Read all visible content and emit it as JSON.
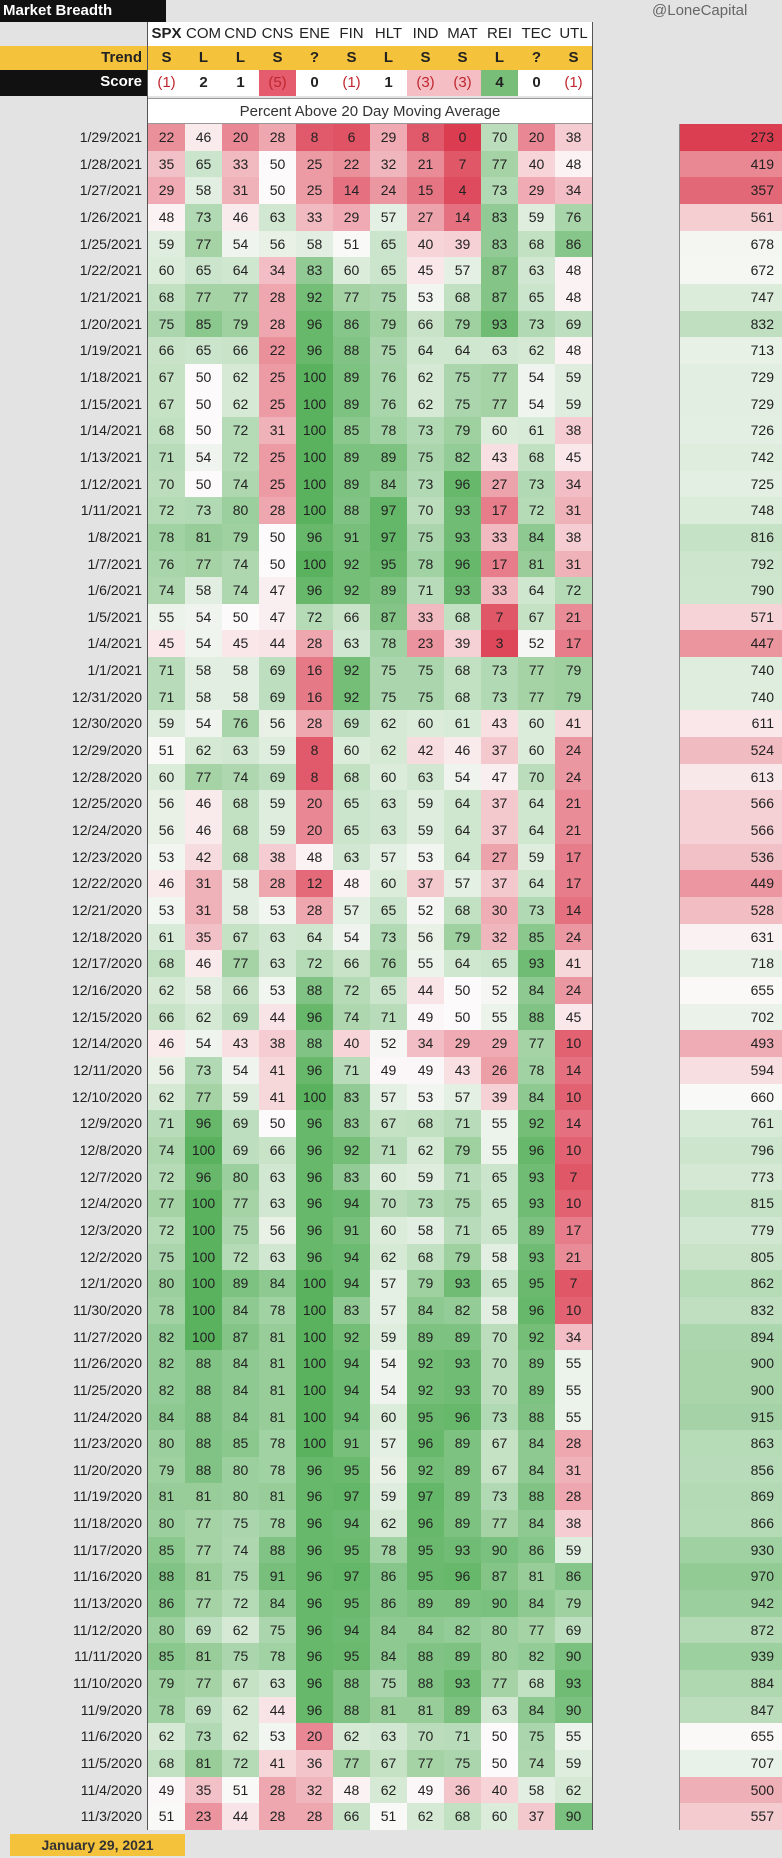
{
  "title": "Market Breadth",
  "handle": "@LoneCapital",
  "subtitle": "Percent Above 20 Day Moving Average",
  "trend_label": "Trend",
  "score_label": "Score",
  "footer_date": "January 29, 2021",
  "chart_data": {
    "type": "table",
    "title": "Market Breadth",
    "subtitle": "Percent Above 20 Day Moving Average",
    "columns": [
      "SPX",
      "COM",
      "CND",
      "CNS",
      "ENE",
      "FIN",
      "HLT",
      "IND",
      "MAT",
      "REI",
      "TEC",
      "UTL"
    ],
    "trend": [
      "S",
      "L",
      "L",
      "S",
      "?",
      "S",
      "L",
      "S",
      "S",
      "L",
      "?",
      "S"
    ],
    "score": [
      "(1)",
      "2",
      "1",
      "(5)",
      "0",
      "(1)",
      "1",
      "(3)",
      "(3)",
      "4",
      "0",
      "(1)"
    ],
    "score_values": [
      -1,
      2,
      1,
      -5,
      0,
      -1,
      1,
      -3,
      -3,
      4,
      0,
      -1
    ],
    "rows": [
      {
        "date": "1/29/2021",
        "v": [
          22,
          46,
          20,
          28,
          8,
          6,
          29,
          8,
          0,
          70,
          20,
          38
        ],
        "total": 273
      },
      {
        "date": "1/28/2021",
        "v": [
          35,
          65,
          33,
          50,
          25,
          22,
          32,
          21,
          7,
          77,
          40,
          48
        ],
        "total": 419
      },
      {
        "date": "1/27/2021",
        "v": [
          29,
          58,
          31,
          50,
          25,
          14,
          24,
          15,
          4,
          73,
          29,
          34
        ],
        "total": 357
      },
      {
        "date": "1/26/2021",
        "v": [
          48,
          73,
          46,
          63,
          33,
          29,
          57,
          27,
          14,
          83,
          59,
          76
        ],
        "total": 561
      },
      {
        "date": "1/25/2021",
        "v": [
          59,
          77,
          54,
          56,
          58,
          51,
          65,
          40,
          39,
          83,
          68,
          86
        ],
        "total": 678
      },
      {
        "date": "1/22/2021",
        "v": [
          60,
          65,
          64,
          34,
          83,
          60,
          65,
          45,
          57,
          87,
          63,
          48
        ],
        "total": 672
      },
      {
        "date": "1/21/2021",
        "v": [
          68,
          77,
          77,
          28,
          92,
          77,
          75,
          53,
          68,
          87,
          65,
          48
        ],
        "total": 747
      },
      {
        "date": "1/20/2021",
        "v": [
          75,
          85,
          79,
          28,
          96,
          86,
          79,
          66,
          79,
          93,
          73,
          69
        ],
        "total": 832
      },
      {
        "date": "1/19/2021",
        "v": [
          66,
          65,
          66,
          22,
          96,
          88,
          75,
          64,
          64,
          63,
          62,
          48
        ],
        "total": 713
      },
      {
        "date": "1/18/2021",
        "v": [
          67,
          50,
          62,
          25,
          100,
          89,
          76,
          62,
          75,
          77,
          54,
          59
        ],
        "total": 729
      },
      {
        "date": "1/15/2021",
        "v": [
          67,
          50,
          62,
          25,
          100,
          89,
          76,
          62,
          75,
          77,
          54,
          59
        ],
        "total": 729
      },
      {
        "date": "1/14/2021",
        "v": [
          68,
          50,
          72,
          31,
          100,
          85,
          78,
          73,
          79,
          60,
          61,
          38
        ],
        "total": 726
      },
      {
        "date": "1/13/2021",
        "v": [
          71,
          54,
          72,
          25,
          100,
          89,
          89,
          75,
          82,
          43,
          68,
          45
        ],
        "total": 742
      },
      {
        "date": "1/12/2021",
        "v": [
          70,
          50,
          74,
          25,
          100,
          89,
          84,
          73,
          96,
          27,
          73,
          34
        ],
        "total": 725
      },
      {
        "date": "1/11/2021",
        "v": [
          72,
          73,
          80,
          28,
          100,
          88,
          97,
          70,
          93,
          17,
          72,
          31
        ],
        "total": 748
      },
      {
        "date": "1/8/2021",
        "v": [
          78,
          81,
          79,
          50,
          96,
          91,
          97,
          75,
          93,
          33,
          84,
          38
        ],
        "total": 816
      },
      {
        "date": "1/7/2021",
        "v": [
          76,
          77,
          74,
          50,
          100,
          92,
          95,
          78,
          96,
          17,
          81,
          31
        ],
        "total": 792
      },
      {
        "date": "1/6/2021",
        "v": [
          74,
          58,
          74,
          47,
          96,
          92,
          89,
          71,
          93,
          33,
          64,
          72
        ],
        "total": 790
      },
      {
        "date": "1/5/2021",
        "v": [
          55,
          54,
          50,
          47,
          72,
          66,
          87,
          33,
          68,
          7,
          67,
          21
        ],
        "total": 571
      },
      {
        "date": "1/4/2021",
        "v": [
          45,
          54,
          45,
          44,
          28,
          63,
          78,
          23,
          39,
          3,
          52,
          17
        ],
        "total": 447
      },
      {
        "date": "1/1/2021",
        "v": [
          71,
          58,
          58,
          69,
          16,
          92,
          75,
          75,
          68,
          73,
          77,
          79
        ],
        "total": 740
      },
      {
        "date": "12/31/2020",
        "v": [
          71,
          58,
          58,
          69,
          16,
          92,
          75,
          75,
          68,
          73,
          77,
          79
        ],
        "total": 740
      },
      {
        "date": "12/30/2020",
        "v": [
          59,
          54,
          76,
          56,
          28,
          69,
          62,
          60,
          61,
          43,
          60,
          41
        ],
        "total": 611
      },
      {
        "date": "12/29/2020",
        "v": [
          51,
          62,
          63,
          59,
          8,
          60,
          62,
          42,
          46,
          37,
          60,
          24
        ],
        "total": 524
      },
      {
        "date": "12/28/2020",
        "v": [
          60,
          77,
          74,
          69,
          8,
          68,
          60,
          63,
          54,
          47,
          70,
          24
        ],
        "total": 613
      },
      {
        "date": "12/25/2020",
        "v": [
          56,
          46,
          68,
          59,
          20,
          65,
          63,
          59,
          64,
          37,
          64,
          21
        ],
        "total": 566
      },
      {
        "date": "12/24/2020",
        "v": [
          56,
          46,
          68,
          59,
          20,
          65,
          63,
          59,
          64,
          37,
          64,
          21
        ],
        "total": 566
      },
      {
        "date": "12/23/2020",
        "v": [
          53,
          42,
          68,
          38,
          48,
          63,
          57,
          53,
          64,
          27,
          59,
          17
        ],
        "total": 536
      },
      {
        "date": "12/22/2020",
        "v": [
          46,
          31,
          58,
          28,
          12,
          48,
          60,
          37,
          57,
          37,
          64,
          17
        ],
        "total": 449
      },
      {
        "date": "12/21/2020",
        "v": [
          53,
          31,
          58,
          53,
          28,
          57,
          65,
          52,
          68,
          30,
          73,
          14
        ],
        "total": 528
      },
      {
        "date": "12/18/2020",
        "v": [
          61,
          35,
          67,
          63,
          64,
          54,
          73,
          56,
          79,
          32,
          85,
          24
        ],
        "total": 631
      },
      {
        "date": "12/17/2020",
        "v": [
          68,
          46,
          77,
          63,
          72,
          66,
          76,
          55,
          64,
          65,
          93,
          41
        ],
        "total": 718
      },
      {
        "date": "12/16/2020",
        "v": [
          62,
          58,
          66,
          53,
          88,
          72,
          65,
          44,
          50,
          52,
          84,
          24
        ],
        "total": 655
      },
      {
        "date": "12/15/2020",
        "v": [
          66,
          62,
          69,
          44,
          96,
          74,
          71,
          49,
          50,
          55,
          88,
          45
        ],
        "total": 702
      },
      {
        "date": "12/14/2020",
        "v": [
          46,
          54,
          43,
          38,
          88,
          40,
          52,
          34,
          29,
          29,
          77,
          10
        ],
        "total": 493
      },
      {
        "date": "12/11/2020",
        "v": [
          56,
          73,
          54,
          41,
          96,
          71,
          49,
          49,
          43,
          26,
          78,
          14
        ],
        "total": 594
      },
      {
        "date": "12/10/2020",
        "v": [
          62,
          77,
          59,
          41,
          100,
          83,
          57,
          53,
          57,
          39,
          84,
          10
        ],
        "total": 660
      },
      {
        "date": "12/9/2020",
        "v": [
          71,
          96,
          69,
          50,
          96,
          83,
          67,
          68,
          71,
          55,
          92,
          14
        ],
        "total": 761
      },
      {
        "date": "12/8/2020",
        "v": [
          74,
          100,
          69,
          66,
          96,
          92,
          71,
          62,
          79,
          55,
          96,
          10
        ],
        "total": 796
      },
      {
        "date": "12/7/2020",
        "v": [
          72,
          96,
          80,
          63,
          96,
          83,
          60,
          59,
          71,
          65,
          93,
          7
        ],
        "total": 773
      },
      {
        "date": "12/4/2020",
        "v": [
          77,
          100,
          77,
          63,
          96,
          94,
          70,
          73,
          75,
          65,
          93,
          10
        ],
        "total": 815
      },
      {
        "date": "12/3/2020",
        "v": [
          72,
          100,
          75,
          56,
          96,
          91,
          60,
          58,
          71,
          65,
          89,
          17
        ],
        "total": 779
      },
      {
        "date": "12/2/2020",
        "v": [
          75,
          100,
          72,
          63,
          96,
          94,
          62,
          68,
          79,
          58,
          93,
          21
        ],
        "total": 805
      },
      {
        "date": "12/1/2020",
        "v": [
          80,
          100,
          89,
          84,
          100,
          94,
          57,
          79,
          93,
          65,
          95,
          7
        ],
        "total": 862
      },
      {
        "date": "11/30/2020",
        "v": [
          78,
          100,
          84,
          78,
          100,
          83,
          57,
          84,
          82,
          58,
          96,
          10
        ],
        "total": 832
      },
      {
        "date": "11/27/2020",
        "v": [
          82,
          100,
          87,
          81,
          100,
          92,
          59,
          89,
          89,
          70,
          92,
          34
        ],
        "total": 894
      },
      {
        "date": "11/26/2020",
        "v": [
          82,
          88,
          84,
          81,
          100,
          94,
          54,
          92,
          93,
          70,
          89,
          55
        ],
        "total": 900
      },
      {
        "date": "11/25/2020",
        "v": [
          82,
          88,
          84,
          81,
          100,
          94,
          54,
          92,
          93,
          70,
          89,
          55
        ],
        "total": 900
      },
      {
        "date": "11/24/2020",
        "v": [
          84,
          88,
          84,
          81,
          100,
          94,
          60,
          95,
          96,
          73,
          88,
          55
        ],
        "total": 915
      },
      {
        "date": "11/23/2020",
        "v": [
          80,
          88,
          85,
          78,
          100,
          91,
          57,
          96,
          89,
          67,
          84,
          28
        ],
        "total": 863
      },
      {
        "date": "11/20/2020",
        "v": [
          79,
          88,
          80,
          78,
          96,
          95,
          56,
          92,
          89,
          67,
          84,
          31
        ],
        "total": 856
      },
      {
        "date": "11/19/2020",
        "v": [
          81,
          81,
          80,
          81,
          96,
          97,
          59,
          97,
          89,
          73,
          88,
          28
        ],
        "total": 869
      },
      {
        "date": "11/18/2020",
        "v": [
          80,
          77,
          75,
          78,
          96,
          94,
          62,
          96,
          89,
          77,
          84,
          38
        ],
        "total": 866
      },
      {
        "date": "11/17/2020",
        "v": [
          85,
          77,
          74,
          88,
          96,
          95,
          78,
          95,
          93,
          90,
          86,
          59
        ],
        "total": 930
      },
      {
        "date": "11/16/2020",
        "v": [
          88,
          81,
          75,
          91,
          96,
          97,
          86,
          95,
          96,
          87,
          81,
          86
        ],
        "total": 970
      },
      {
        "date": "11/13/2020",
        "v": [
          86,
          77,
          72,
          84,
          96,
          95,
          86,
          89,
          89,
          90,
          84,
          79
        ],
        "total": 942
      },
      {
        "date": "11/12/2020",
        "v": [
          80,
          69,
          62,
          75,
          96,
          94,
          84,
          84,
          82,
          80,
          77,
          69
        ],
        "total": 872
      },
      {
        "date": "11/11/2020",
        "v": [
          85,
          81,
          75,
          78,
          96,
          95,
          84,
          88,
          89,
          80,
          82,
          90
        ],
        "total": 939
      },
      {
        "date": "11/10/2020",
        "v": [
          79,
          77,
          67,
          63,
          96,
          88,
          75,
          88,
          93,
          77,
          68,
          93
        ],
        "total": 884
      },
      {
        "date": "11/9/2020",
        "v": [
          78,
          69,
          62,
          44,
          96,
          88,
          81,
          81,
          89,
          63,
          84,
          90
        ],
        "total": 847
      },
      {
        "date": "11/6/2020",
        "v": [
          62,
          73,
          62,
          53,
          20,
          62,
          63,
          70,
          71,
          50,
          75,
          55
        ],
        "total": 655
      },
      {
        "date": "11/5/2020",
        "v": [
          68,
          81,
          72,
          41,
          36,
          77,
          67,
          77,
          75,
          50,
          74,
          59
        ],
        "total": 707
      },
      {
        "date": "11/4/2020",
        "v": [
          49,
          35,
          51,
          28,
          32,
          48,
          62,
          49,
          36,
          40,
          58,
          62
        ],
        "total": 500
      },
      {
        "date": "11/3/2020",
        "v": [
          51,
          23,
          44,
          28,
          28,
          66,
          51,
          62,
          68,
          60,
          37,
          90
        ],
        "total": 557
      }
    ]
  }
}
